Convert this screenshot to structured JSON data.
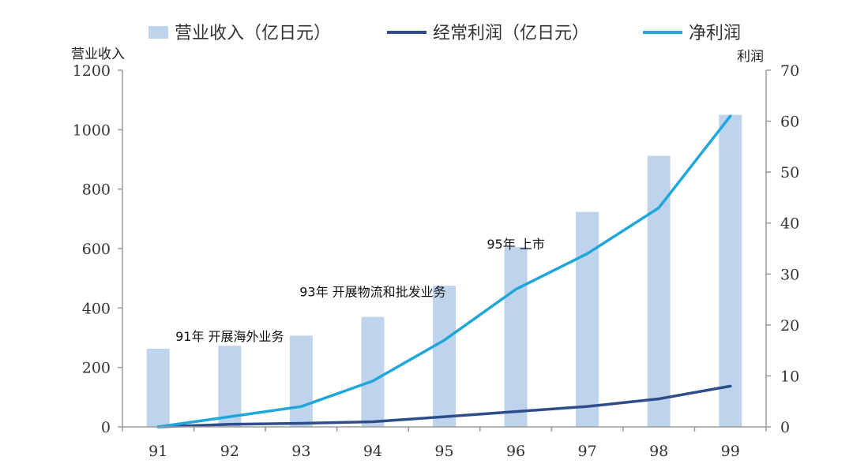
{
  "chart_data": {
    "type": "bar-line-combo",
    "categories": [
      "91",
      "92",
      "93",
      "94",
      "95",
      "96",
      "97",
      "98",
      "99"
    ],
    "series": [
      {
        "name": "营业收入（亿日元）",
        "type": "bar",
        "axis": "left",
        "color": "#bdd4ec",
        "values": [
          263,
          273,
          307,
          370,
          475,
          605,
          723,
          912,
          1050
        ]
      },
      {
        "name": "经常利润（亿日元）",
        "type": "line",
        "axis": "right",
        "color": "#2e4d8a",
        "values": [
          0,
          0.5,
          0.7,
          1,
          2,
          3,
          4,
          5.5,
          8
        ]
      },
      {
        "name": "净利润",
        "type": "line",
        "axis": "right",
        "color": "#1fa6db",
        "values": [
          0,
          2,
          4,
          9,
          17,
          27,
          34,
          43,
          61
        ]
      }
    ],
    "left_axis": {
      "label": "营业收入",
      "range": [
        0,
        1200
      ],
      "ticks": [
        0,
        200,
        400,
        600,
        800,
        1000,
        1200
      ]
    },
    "right_axis": {
      "label": "利润",
      "range": [
        0,
        70
      ],
      "ticks": [
        0,
        10,
        20,
        30,
        40,
        50,
        60,
        70
      ]
    },
    "annotations": [
      {
        "text": "91年  开展海外业务",
        "category": "92",
        "value": 380
      },
      {
        "text": "93年  开展物流和批发业务",
        "category": "94",
        "value": 530
      },
      {
        "text": "95年  上市",
        "category": "96",
        "value": 690
      }
    ],
    "grid": false,
    "legend_position": "top"
  }
}
